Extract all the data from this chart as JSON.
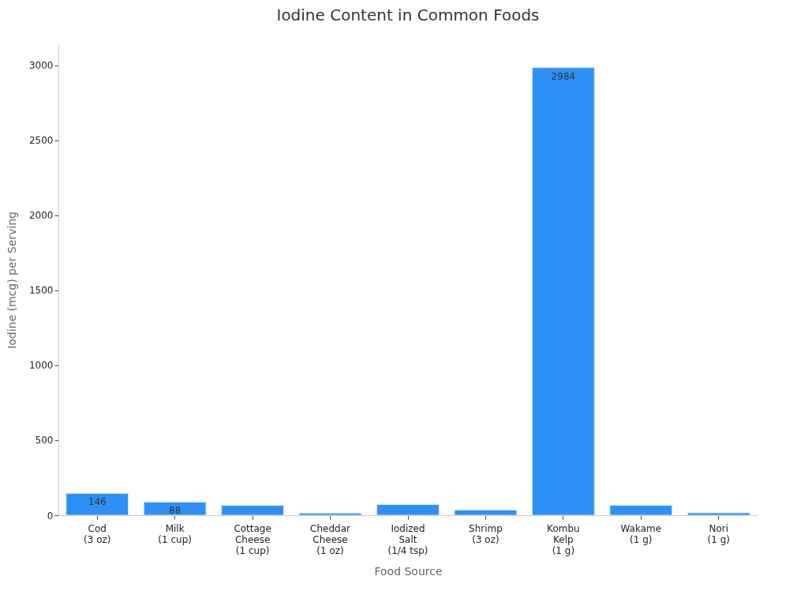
{
  "chart_data": {
    "type": "bar",
    "title": "Iodine Content in Common Foods",
    "xlabel": "Food Source",
    "ylabel": "Iodine (mcg) per Serving",
    "categories": [
      "Cod\n(3 oz)",
      "Milk\n(1 cup)",
      "Cottage\nCheese\n(1 cup)",
      "Cheddar\nCheese\n(1 oz)",
      "Iodized\nSalt\n(1/4 tsp)",
      "Shrimp\n(3 oz)",
      "Kombu\nKelp\n(1 g)",
      "Wakame\n(1 g)",
      "Nori\n(1 g)"
    ],
    "values": [
      146,
      88,
      65,
      14,
      71,
      35,
      2984,
      66,
      16
    ],
    "value_labels": [
      "146",
      "88",
      null,
      null,
      null,
      null,
      "2984",
      null,
      null
    ],
    "color": "#2e90f7",
    "ylim": [
      0,
      3140
    ],
    "yticks": [
      0,
      500,
      1000,
      1500,
      2000,
      2500,
      3000
    ],
    "grid": false
  }
}
